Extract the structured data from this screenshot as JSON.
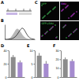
{
  "figure": {
    "panel_labels": [
      "A",
      "B",
      "C",
      "D",
      "E",
      "F"
    ],
    "image_labels": [
      "GFP",
      "EdU",
      "GFP+EdU"
    ]
  },
  "chart_data": [
    {
      "type": "line",
      "xlim": [
        0,
        10
      ],
      "ylim": [
        0,
        100
      ],
      "tick_labels": false,
      "x": [
        0,
        1,
        2,
        3,
        4,
        5,
        6,
        7,
        8,
        9,
        10
      ],
      "series": [
        {
          "type": "area",
          "color": "#9a9a9a",
          "values": [
            0,
            2,
            10,
            40,
            80,
            60,
            25,
            8,
            2,
            0,
            0
          ]
        },
        {
          "type": "line",
          "color": "#222222",
          "values": [
            0,
            0,
            2,
            8,
            25,
            60,
            85,
            45,
            12,
            3,
            0
          ]
        }
      ]
    },
    {
      "type": "bar",
      "categories": [
        null,
        null
      ],
      "values": [
        30,
        22
      ],
      "errors": [
        3,
        3
      ],
      "colors": [
        "#8c8c8c",
        "#a58bcf"
      ],
      "ylim": [
        0,
        40
      ],
      "yticks": [
        0,
        20,
        40
      ]
    },
    {
      "type": "bar",
      "categories": [
        null,
        null
      ],
      "values": [
        8,
        5
      ],
      "errors": [
        1,
        1
      ],
      "colors": [
        "#8c8c8c",
        "#a58bcf"
      ],
      "ylim": [
        0,
        10
      ],
      "yticks": [
        0,
        5,
        10
      ]
    },
    {
      "type": "bar",
      "categories": [
        null,
        null
      ],
      "values": [
        20,
        18
      ],
      "errors": [
        2,
        2
      ],
      "colors": [
        "#8c8c8c",
        "#a58bcf"
      ],
      "ylim": [
        0,
        30
      ],
      "yticks": [
        0,
        10,
        20,
        30
      ]
    }
  ]
}
